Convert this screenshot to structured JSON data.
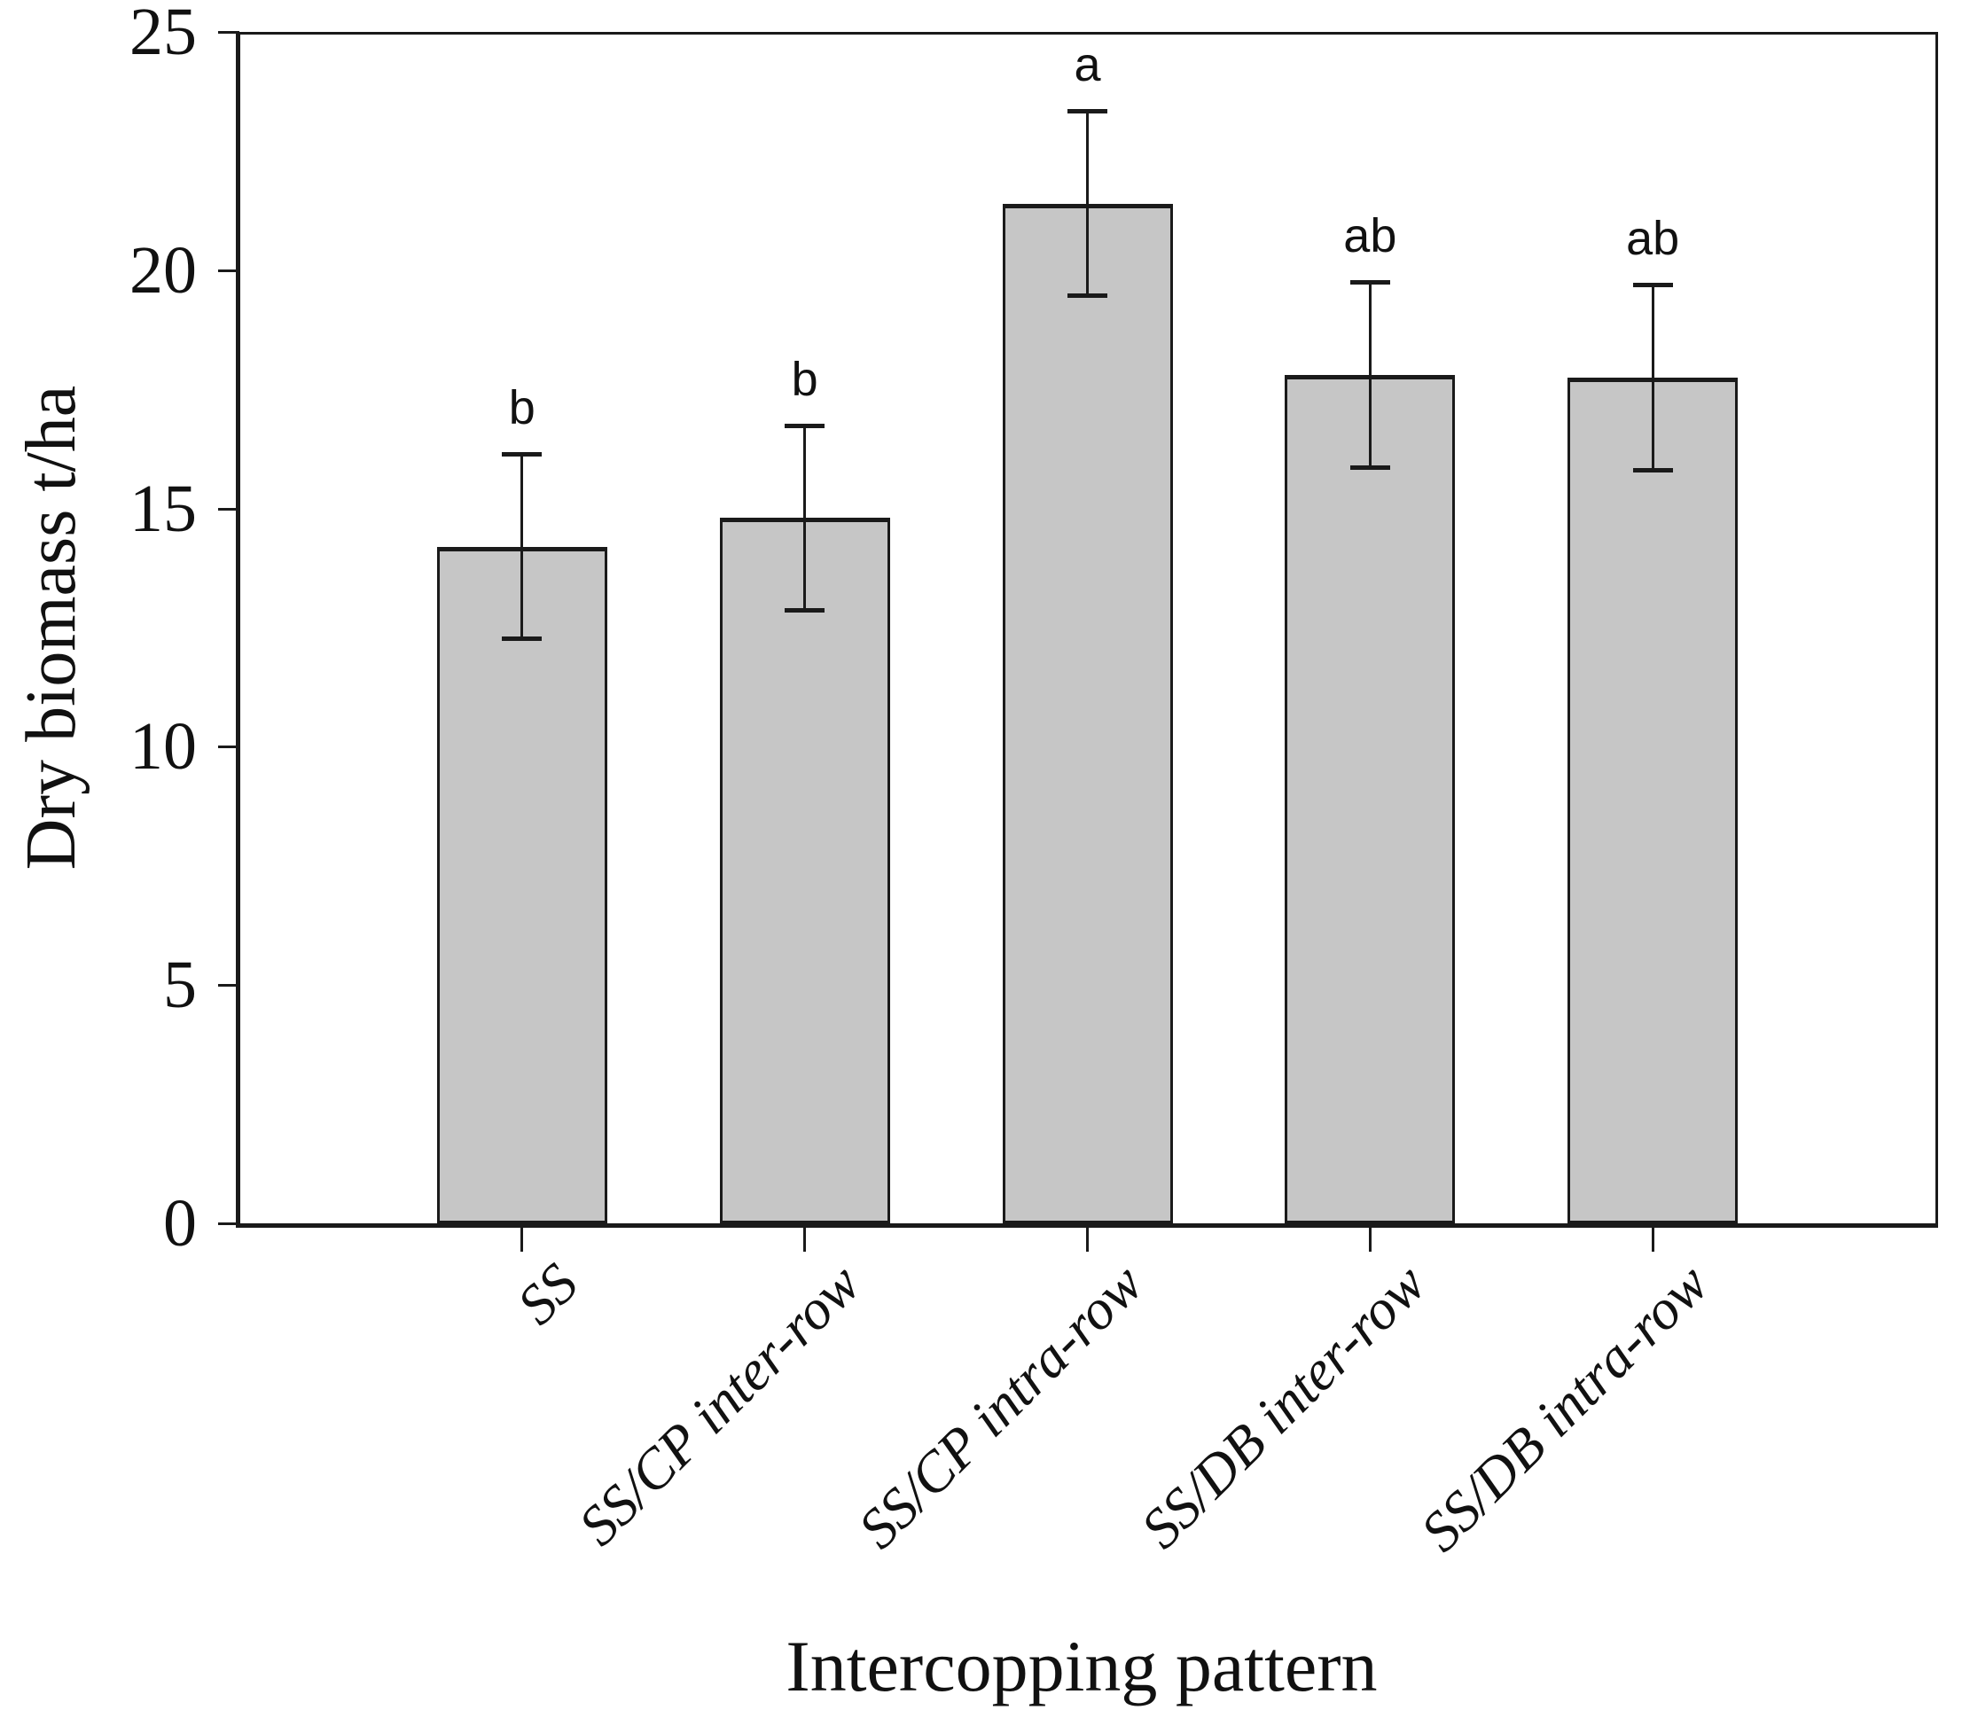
{
  "figure": {
    "background": "#ffffff"
  },
  "chart_data": {
    "type": "bar",
    "title": "",
    "xlabel": "Intercopping pattern",
    "ylabel": "Dry biomass t/ha",
    "ylim": [
      0,
      25
    ],
    "yticks": [
      0,
      5,
      10,
      15,
      20,
      25
    ],
    "categories": [
      "SS",
      "SS/CP inter-row",
      "SS/CP intra-row",
      "SS/DB inter-row",
      "SS/DB intra-row"
    ],
    "values": [
      14.2,
      14.8,
      21.4,
      17.8,
      17.75
    ],
    "error_bars": [
      1.95,
      1.95,
      1.95,
      1.95,
      1.95
    ],
    "sig_letters": [
      "b",
      "b",
      "a",
      "ab",
      "ab"
    ],
    "bar_fill": "#c6c6c6",
    "bar_border": "#1a1a1a",
    "axis_color": "#1a1a1a",
    "text_color": "#111111",
    "grid": false,
    "legend": null
  }
}
